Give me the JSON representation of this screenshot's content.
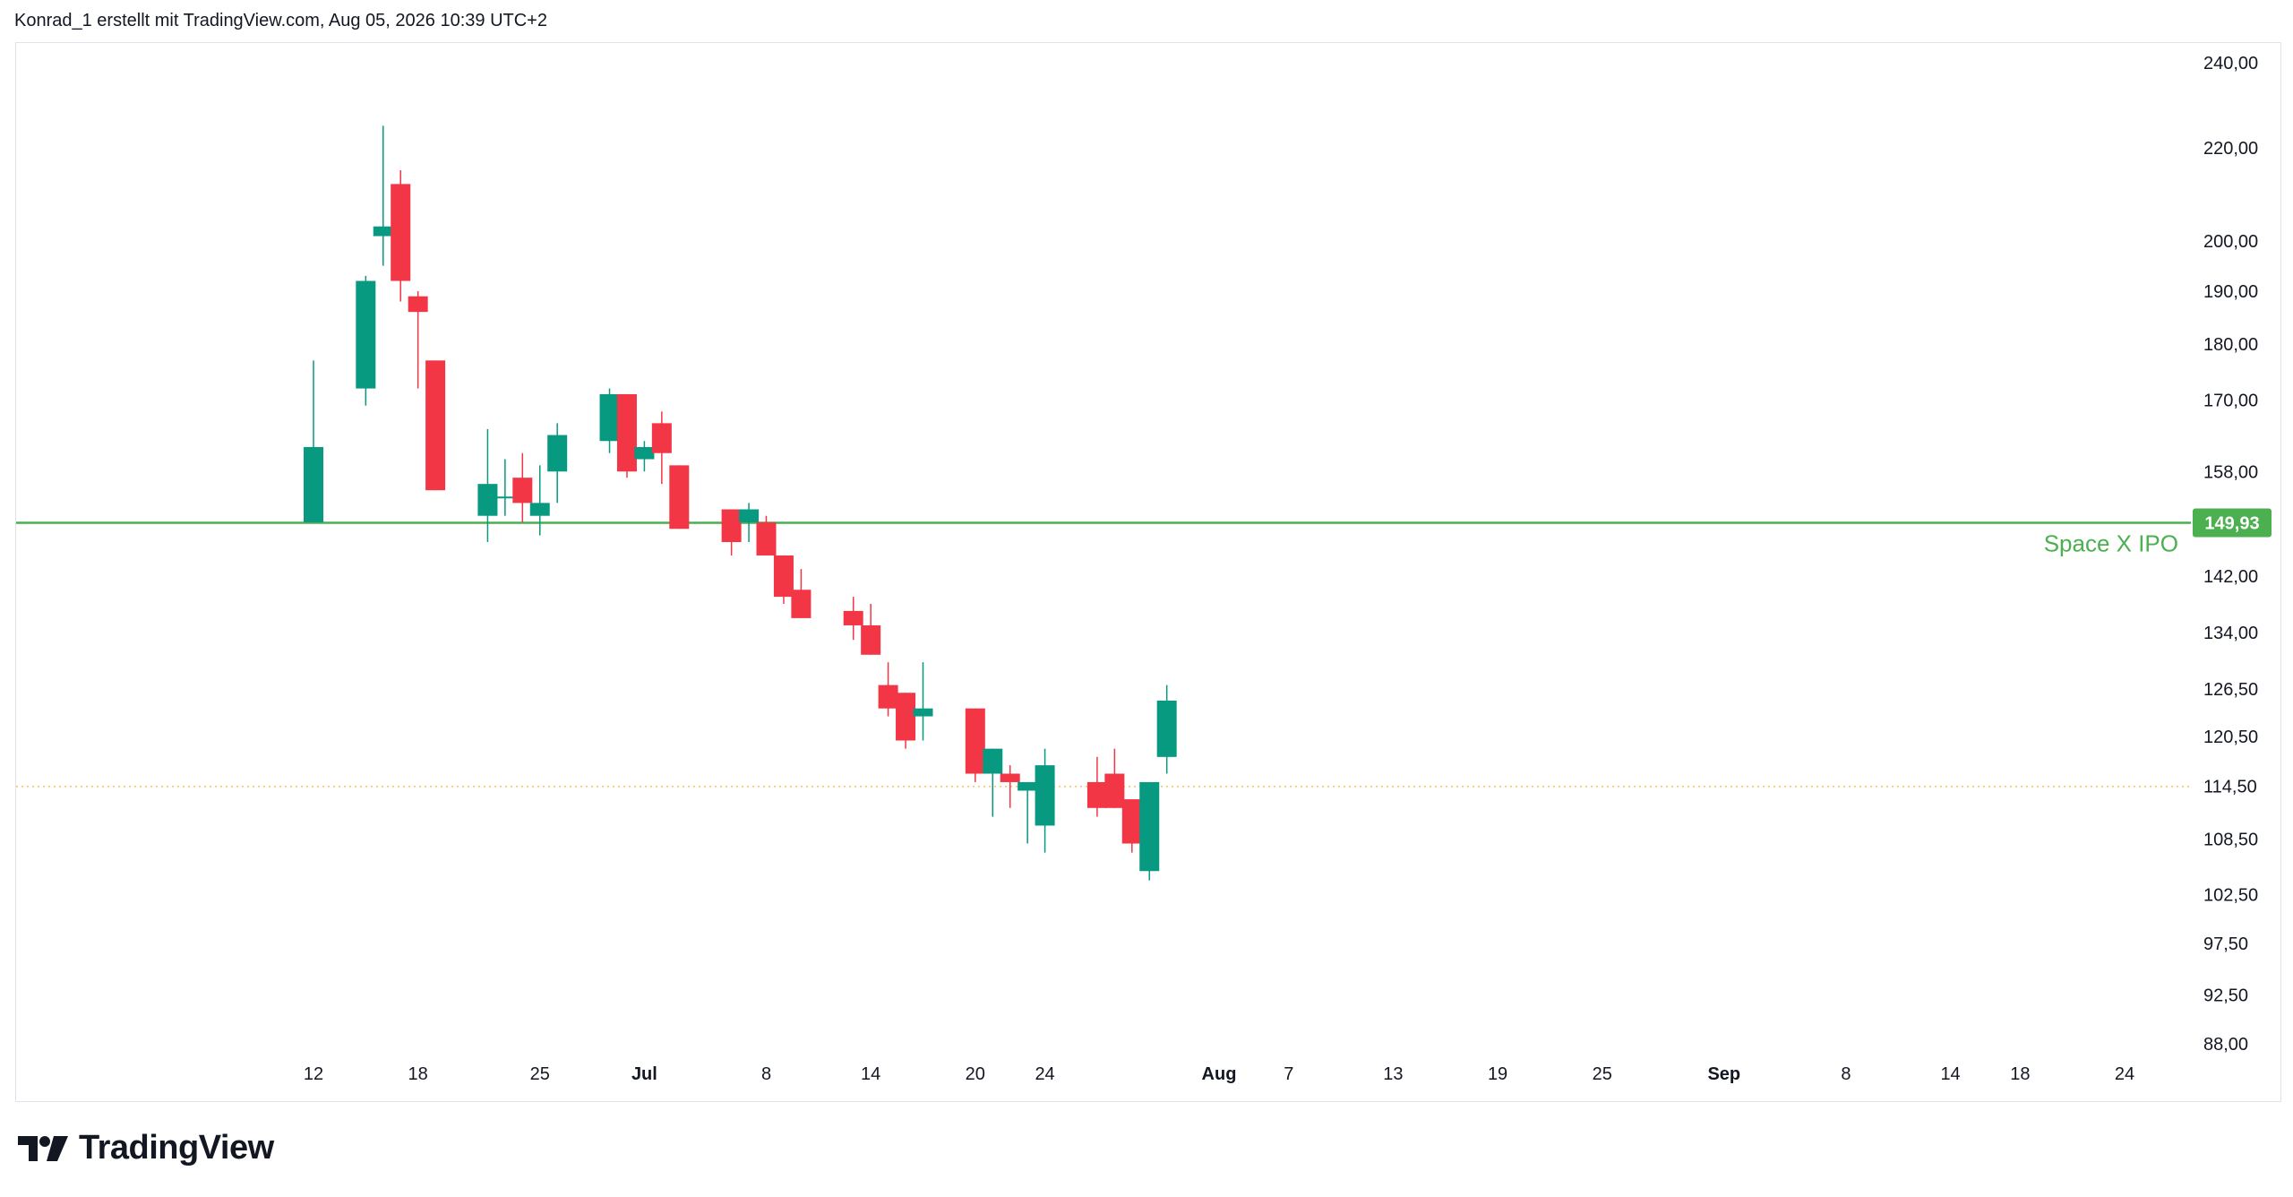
{
  "header": {
    "caption": "Konrad_1 erstellt mit TradingView.com, Aug 05, 2026 10:39 UTC+2"
  },
  "footer": {
    "brand": "TradingView",
    "logo_icon": "tradingview-logo-icon"
  },
  "colors": {
    "up": "#089981",
    "down": "#f23645",
    "hline": "#4caf50",
    "hline_text": "#4caf50",
    "last_price_dots": "#f7c55a"
  },
  "chart_data": {
    "type": "candlestick",
    "title": "",
    "xlabel": "",
    "ylabel": "",
    "y_scale": "log",
    "ylim": [
      84,
      246
    ],
    "y_ticks": [
      "240,00",
      "220,00",
      "200,00",
      "190,00",
      "180,00",
      "170,00",
      "158,00",
      "149,93",
      "142,00",
      "134,00",
      "126,50",
      "120,50",
      "114,50",
      "108,50",
      "102,50",
      "97,50",
      "92,50",
      "88,00"
    ],
    "x_ticks": [
      {
        "label": "12",
        "date": "2026-06-12"
      },
      {
        "label": "18",
        "date": "2026-06-18"
      },
      {
        "label": "25",
        "date": "2026-06-25"
      },
      {
        "label": "Jul",
        "date": "2026-07-01",
        "bold": true
      },
      {
        "label": "8",
        "date": "2026-07-08"
      },
      {
        "label": "14",
        "date": "2026-07-14"
      },
      {
        "label": "20",
        "date": "2026-07-20"
      },
      {
        "label": "24",
        "date": "2026-07-24"
      },
      {
        "label": "Aug",
        "date": "2026-08-03",
        "bold": true
      },
      {
        "label": "7",
        "date": "2026-08-07"
      },
      {
        "label": "13",
        "date": "2026-08-13"
      },
      {
        "label": "19",
        "date": "2026-08-19"
      },
      {
        "label": "25",
        "date": "2026-08-25"
      },
      {
        "label": "Sep",
        "date": "2026-09-01",
        "bold": true
      },
      {
        "label": "8",
        "date": "2026-09-08"
      },
      {
        "label": "14",
        "date": "2026-09-14"
      },
      {
        "label": "18",
        "date": "2026-09-18"
      },
      {
        "label": "24",
        "date": "2026-09-24"
      }
    ],
    "candles": [
      {
        "date": "2026-06-12",
        "open": 150,
        "high": 177,
        "low": 150,
        "close": 162
      },
      {
        "date": "2026-06-15",
        "open": 172,
        "high": 193,
        "low": 169,
        "close": 192
      },
      {
        "date": "2026-06-16",
        "open": 201,
        "high": 225,
        "low": 195,
        "close": 203
      },
      {
        "date": "2026-06-17",
        "open": 212,
        "high": 215,
        "low": 188,
        "close": 192
      },
      {
        "date": "2026-06-18",
        "open": 189,
        "high": 190,
        "low": 172,
        "close": 186
      },
      {
        "date": "2026-06-19",
        "open": 177,
        "high": 177,
        "low": 155,
        "close": 155
      },
      {
        "date": "2026-06-22",
        "open": 151,
        "high": 165,
        "low": 147,
        "close": 156
      },
      {
        "date": "2026-06-23",
        "open": 154,
        "high": 160,
        "low": 151,
        "close": 154
      },
      {
        "date": "2026-06-24",
        "open": 157,
        "high": 161,
        "low": 150,
        "close": 153
      },
      {
        "date": "2026-06-25",
        "open": 151,
        "high": 159,
        "low": 148,
        "close": 153
      },
      {
        "date": "2026-06-26",
        "open": 158,
        "high": 166,
        "low": 153,
        "close": 164
      },
      {
        "date": "2026-06-29",
        "open": 163,
        "high": 172,
        "low": 161,
        "close": 171
      },
      {
        "date": "2026-06-30",
        "open": 171,
        "high": 171,
        "low": 157,
        "close": 158
      },
      {
        "date": "2026-07-01",
        "open": 160,
        "high": 163,
        "low": 158,
        "close": 162
      },
      {
        "date": "2026-07-02",
        "open": 166,
        "high": 168,
        "low": 156,
        "close": 161
      },
      {
        "date": "2026-07-03",
        "open": 159,
        "high": 159,
        "low": 149,
        "close": 149
      },
      {
        "date": "2026-07-06",
        "open": 152,
        "high": 152,
        "low": 145,
        "close": 147
      },
      {
        "date": "2026-07-07",
        "open": 150,
        "high": 153,
        "low": 147,
        "close": 152
      },
      {
        "date": "2026-07-08",
        "open": 150,
        "high": 151,
        "low": 145,
        "close": 145
      },
      {
        "date": "2026-07-09",
        "open": 145,
        "high": 145,
        "low": 138,
        "close": 139
      },
      {
        "date": "2026-07-10",
        "open": 140,
        "high": 143,
        "low": 136,
        "close": 136
      },
      {
        "date": "2026-07-13",
        "open": 137,
        "high": 139,
        "low": 133,
        "close": 135
      },
      {
        "date": "2026-07-14",
        "open": 135,
        "high": 138,
        "low": 131,
        "close": 131
      },
      {
        "date": "2026-07-15",
        "open": 127,
        "high": 130,
        "low": 123,
        "close": 124
      },
      {
        "date": "2026-07-16",
        "open": 126,
        "high": 126,
        "low": 119,
        "close": 120
      },
      {
        "date": "2026-07-17",
        "open": 123,
        "high": 130,
        "low": 120,
        "close": 124
      },
      {
        "date": "2026-07-20",
        "open": 124,
        "high": 124,
        "low": 115,
        "close": 116
      },
      {
        "date": "2026-07-21",
        "open": 116,
        "high": 119,
        "low": 111,
        "close": 119
      },
      {
        "date": "2026-07-22",
        "open": 116,
        "high": 117,
        "low": 112,
        "close": 115
      },
      {
        "date": "2026-07-23",
        "open": 114,
        "high": 115,
        "low": 108,
        "close": 115
      },
      {
        "date": "2026-07-24",
        "open": 110,
        "high": 119,
        "low": 107,
        "close": 117
      },
      {
        "date": "2026-07-27",
        "open": 115,
        "high": 118,
        "low": 111,
        "close": 112
      },
      {
        "date": "2026-07-28",
        "open": 116,
        "high": 119,
        "low": 112,
        "close": 112
      },
      {
        "date": "2026-07-29",
        "open": 113,
        "high": 113,
        "low": 107,
        "close": 108
      },
      {
        "date": "2026-07-30",
        "open": 105,
        "high": 115,
        "low": 104,
        "close": 115
      },
      {
        "date": "2026-07-31",
        "open": 118,
        "high": 127,
        "low": 116,
        "close": 125
      }
    ],
    "horizontal_line": {
      "value": 149.93,
      "label": "Space X IPO",
      "price_tag": "149,93"
    },
    "last_price_line": {
      "value": 114.5
    }
  }
}
